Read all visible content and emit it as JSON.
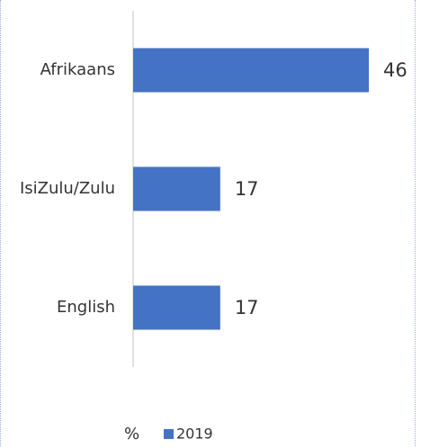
{
  "chart_data": {
    "type": "bar",
    "orientation": "horizontal",
    "categories": [
      "Afrikaans",
      "IsiZulu/Zulu",
      "English"
    ],
    "series": [
      {
        "name": "2019",
        "color": "#4472c4",
        "values": [
          46,
          17,
          17
        ]
      }
    ],
    "x_label": "%"
  }
}
